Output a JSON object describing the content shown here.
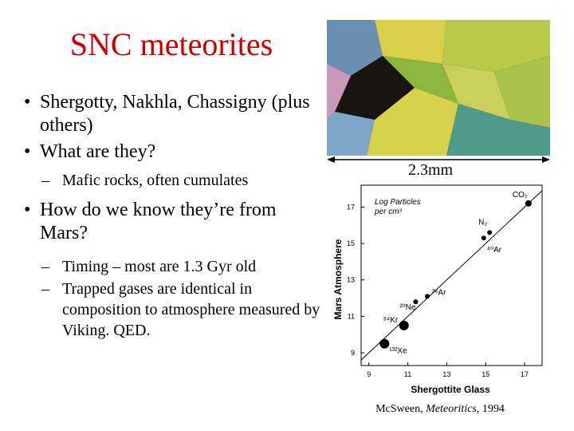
{
  "title": "SNC meteorites",
  "bullets": [
    {
      "text": "Shergotty, Nakhla, Chassigny (plus others)"
    },
    {
      "text": "What are they?",
      "sub": [
        "Mafic rocks, often cumulates"
      ]
    },
    {
      "text": "How do we know they’re from Mars?",
      "sub": [
        "Timing – most are 1.3 Gyr old",
        "Trapped gases are identical in composition to atmosphere measured by Viking. QED."
      ]
    }
  ],
  "photo": {
    "scale_label": "2.3mm"
  },
  "figure": {
    "xlabel": "Shergottite Glass",
    "ylabel": "Mars Atmosphere",
    "note": [
      "Log Particles",
      "per cm³"
    ],
    "xlim": [
      8.6,
      17.9
    ],
    "ylim": [
      8.3,
      18.2
    ],
    "xticks": [
      9,
      11,
      13,
      15,
      17
    ],
    "yticks": [
      9,
      11,
      13,
      15,
      17
    ],
    "points": [
      {
        "label": "¹³²Xe",
        "x": 9.8,
        "y": 9.5
      },
      {
        "label": "⁸⁴Kr",
        "x": 10.8,
        "y": 10.5
      },
      {
        "label": "²⁰Ne",
        "x": 11.4,
        "y": 11.8
      },
      {
        "label": "³⁶Ar",
        "x": 12.0,
        "y": 12.1
      },
      {
        "label": "⁴⁰Ar",
        "x": 14.9,
        "y": 15.3
      },
      {
        "label": "N₂",
        "x": 15.2,
        "y": 15.6
      },
      {
        "label": "CO₂",
        "x": 17.2,
        "y": 17.2
      }
    ]
  },
  "citation": [
    "McSween, ",
    "Meteoritics",
    ", 1994"
  ]
}
